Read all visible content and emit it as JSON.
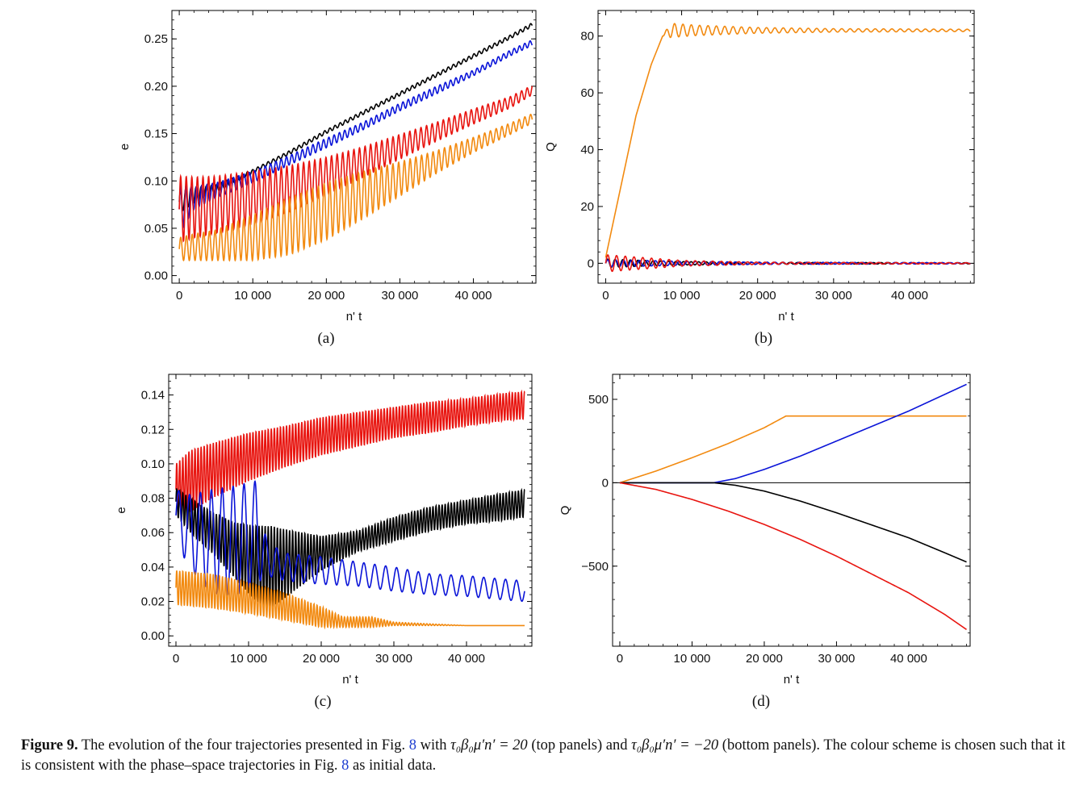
{
  "figure": {
    "caption_head": "Figure 9.",
    "caption_part1": "The evolution of the four trajectories presented in Fig.",
    "ref1": "8",
    "caption_part2": "with",
    "math1": "τ₀β₀μ′n′ = 20",
    "caption_part3": "(top panels) and",
    "math2": "τ₀β₀μ′n′ = −20",
    "caption_part4": "(bottom panels). The colour scheme is chosen such that it is consistent with the phase–space trajectories in Fig.",
    "ref2": "8",
    "caption_part5": "as initial data."
  },
  "colors": {
    "black": "#000000",
    "blue": "#0a14d8",
    "red": "#e8140f",
    "orange": "#f28a10"
  },
  "chart_data": [
    {
      "panel": "a",
      "sublabel": "(a)",
      "type": "line",
      "xlabel": "n' t",
      "ylabel": "e",
      "xlim": [
        -1000,
        48500
      ],
      "ylim": [
        -0.008,
        0.28
      ],
      "xticks": [
        0,
        10000,
        20000,
        30000,
        40000
      ],
      "xtick_labels": [
        "0",
        "10 000",
        "20 000",
        "30 000",
        "40 000"
      ],
      "yticks": [
        0,
        0.05,
        0.1,
        0.15,
        0.2,
        0.25
      ],
      "ytick_labels": [
        "0.00",
        "0.05",
        "0.10",
        "0.15",
        "0.20",
        "0.25"
      ],
      "series": [
        {
          "color": "black",
          "x": [
            0,
            2000,
            5000,
            10000,
            15000,
            20000,
            25000,
            30000,
            35000,
            40000,
            45000,
            48000
          ],
          "y": [
            0.078,
            0.085,
            0.092,
            0.11,
            0.13,
            0.152,
            0.172,
            0.192,
            0.212,
            0.232,
            0.252,
            0.265
          ],
          "osc": [
            0.012,
            0.008,
            0.004,
            0.002,
            0.002,
            0.002,
            0.002,
            0.002,
            0.002,
            0.002,
            0.002,
            0.002
          ],
          "period": 700
        },
        {
          "color": "blue",
          "x": [
            0,
            2000,
            5000,
            10000,
            15000,
            20000,
            25000,
            30000,
            35000,
            40000,
            45000,
            48000
          ],
          "y": [
            0.07,
            0.082,
            0.09,
            0.104,
            0.122,
            0.14,
            0.158,
            0.178,
            0.196,
            0.214,
            0.235,
            0.246
          ],
          "osc": [
            0.025,
            0.012,
            0.008,
            0.006,
            0.005,
            0.005,
            0.004,
            0.004,
            0.004,
            0.003,
            0.003,
            0.003
          ],
          "period": 720
        },
        {
          "color": "red",
          "x": [
            0,
            2000,
            5000,
            10000,
            15000,
            20000,
            25000,
            30000,
            35000,
            40000,
            45000,
            48000
          ],
          "y": [
            0.07,
            0.072,
            0.075,
            0.082,
            0.092,
            0.105,
            0.12,
            0.136,
            0.152,
            0.168,
            0.183,
            0.196
          ],
          "osc": [
            0.035,
            0.032,
            0.03,
            0.028,
            0.024,
            0.02,
            0.016,
            0.013,
            0.01,
            0.008,
            0.006,
            0.005
          ],
          "period": 760
        },
        {
          "color": "orange",
          "x": [
            0,
            2000,
            5000,
            10000,
            15000,
            20000,
            25000,
            30000,
            35000,
            40000,
            45000,
            48000
          ],
          "y": [
            0.028,
            0.03,
            0.032,
            0.04,
            0.052,
            0.068,
            0.085,
            0.102,
            0.12,
            0.138,
            0.155,
            0.166
          ],
          "osc": [
            0.012,
            0.014,
            0.016,
            0.024,
            0.03,
            0.03,
            0.025,
            0.018,
            0.012,
            0.008,
            0.006,
            0.005
          ],
          "period": 780
        }
      ]
    },
    {
      "panel": "b",
      "sublabel": "(b)",
      "type": "line",
      "xlabel": "n' t",
      "ylabel": "Q",
      "xlim": [
        -1000,
        48500
      ],
      "ylim": [
        -7,
        89
      ],
      "xticks": [
        0,
        10000,
        20000,
        30000,
        40000
      ],
      "xtick_labels": [
        "0",
        "10 000",
        "20 000",
        "30 000",
        "40 000"
      ],
      "yticks": [
        0,
        20,
        40,
        60,
        80
      ],
      "ytick_labels": [
        "0",
        "20",
        "40",
        "60",
        "80"
      ],
      "series": [
        {
          "color": "orange",
          "x": [
            0,
            2000,
            4000,
            6000,
            7500,
            8500,
            12000,
            20000,
            30000,
            40000,
            48000
          ],
          "y": [
            2,
            27,
            52,
            70,
            80,
            82,
            82,
            82,
            82,
            82,
            82
          ],
          "osc": [
            0,
            0,
            0,
            0,
            0,
            2.5,
            1.8,
            1.0,
            0.6,
            0.5,
            0.4
          ],
          "period": 1100
        },
        {
          "color": "black",
          "x": [
            0,
            5000,
            10000,
            20000,
            48000
          ],
          "y": [
            0,
            0,
            0,
            0,
            0
          ],
          "osc": [
            1.5,
            1.0,
            0.6,
            0.3,
            0.2
          ],
          "period": 1000
        },
        {
          "color": "blue",
          "x": [
            0,
            5000,
            10000,
            20000,
            48000
          ],
          "y": [
            0,
            0,
            0,
            0,
            0
          ],
          "osc": [
            1.2,
            1.0,
            0.7,
            0.4,
            0.2
          ],
          "period": 1050
        },
        {
          "color": "red",
          "x": [
            0,
            5000,
            10000,
            20000,
            48000
          ],
          "y": [
            0,
            0,
            0,
            0,
            0
          ],
          "osc": [
            3.0,
            2.0,
            1.0,
            0.4,
            0.2
          ],
          "period": 1150
        }
      ]
    },
    {
      "panel": "c",
      "sublabel": "(c)",
      "type": "line",
      "xlabel": "n' t",
      "ylabel": "e",
      "xlim": [
        -1000,
        49000
      ],
      "ylim": [
        -0.006,
        0.152
      ],
      "xticks": [
        0,
        10000,
        20000,
        30000,
        40000
      ],
      "xtick_labels": [
        "0",
        "10 000",
        "20 000",
        "30 000",
        "40 000"
      ],
      "yticks": [
        0,
        0.02,
        0.04,
        0.06,
        0.08,
        0.1,
        0.12,
        0.14
      ],
      "ytick_labels": [
        "0.00",
        "0.02",
        "0.04",
        "0.06",
        "0.08",
        "0.10",
        "0.12",
        "0.14"
      ],
      "series": [
        {
          "color": "red",
          "x": [
            0,
            2000,
            5000,
            10000,
            15000,
            20000,
            25000,
            30000,
            35000,
            40000,
            45000,
            48000
          ],
          "y": [
            0.085,
            0.09,
            0.096,
            0.104,
            0.11,
            0.116,
            0.12,
            0.124,
            0.127,
            0.13,
            0.133,
            0.134
          ],
          "osc": [
            0.015,
            0.018,
            0.016,
            0.014,
            0.012,
            0.011,
            0.01,
            0.009,
            0.009,
            0.008,
            0.008,
            0.008
          ],
          "period": 420
        },
        {
          "color": "black",
          "x": [
            0,
            2000,
            5000,
            8000,
            11000,
            13000,
            15000,
            20000,
            25000,
            30000,
            35000,
            40000,
            45000,
            48000
          ],
          "y": [
            0.078,
            0.07,
            0.06,
            0.05,
            0.042,
            0.04,
            0.042,
            0.048,
            0.055,
            0.062,
            0.068,
            0.072,
            0.075,
            0.077
          ],
          "osc": [
            0.008,
            0.01,
            0.012,
            0.016,
            0.022,
            0.024,
            0.02,
            0.01,
            0.006,
            0.007,
            0.007,
            0.007,
            0.008,
            0.008
          ],
          "period": 420
        },
        {
          "color": "blue",
          "x": [
            0,
            2000,
            5000,
            8000,
            11000,
            12500,
            15000,
            20000,
            25000,
            30000,
            35000,
            40000,
            45000,
            48000
          ],
          "y": [
            0.07,
            0.06,
            0.055,
            0.055,
            0.06,
            0.045,
            0.04,
            0.038,
            0.036,
            0.033,
            0.03,
            0.029,
            0.027,
            0.026
          ],
          "osc": [
            0.015,
            0.022,
            0.03,
            0.032,
            0.03,
            0.01,
            0.008,
            0.008,
            0.007,
            0.007,
            0.006,
            0.006,
            0.006,
            0.006
          ],
          "period": 1500
        },
        {
          "color": "orange",
          "x": [
            0,
            5000,
            10000,
            15000,
            20000,
            23000,
            27000,
            30000,
            40000,
            48000
          ],
          "y": [
            0.028,
            0.026,
            0.022,
            0.017,
            0.011,
            0.008,
            0.008,
            0.007,
            0.006,
            0.006
          ],
          "osc": [
            0.01,
            0.01,
            0.009,
            0.008,
            0.006,
            0.003,
            0.003,
            0.001,
            0.0,
            0.0
          ],
          "period": 420
        }
      ]
    },
    {
      "panel": "d",
      "sublabel": "(d)",
      "type": "line",
      "xlabel": "n' t",
      "ylabel": "Q",
      "xlim": [
        -1000,
        48500
      ],
      "ylim": [
        -980,
        650
      ],
      "xticks": [
        0,
        10000,
        20000,
        30000,
        40000
      ],
      "xtick_labels": [
        "0",
        "10 000",
        "20 000",
        "30 000",
        "40 000"
      ],
      "yticks": [
        -500,
        0,
        500
      ],
      "ytick_labels": [
        "−500",
        "0",
        "500"
      ],
      "series": [
        {
          "color": "orange",
          "x": [
            0,
            5000,
            10000,
            15000,
            20000,
            23000,
            30000,
            40000,
            48000
          ],
          "y": [
            0,
            70,
            150,
            235,
            330,
            400,
            400,
            400,
            400
          ]
        },
        {
          "color": "blue",
          "x": [
            0,
            10000,
            13000,
            16000,
            20000,
            25000,
            30000,
            35000,
            40000,
            45000,
            48000
          ],
          "y": [
            0,
            0,
            0,
            25,
            80,
            160,
            250,
            340,
            430,
            530,
            590
          ]
        },
        {
          "color": "black",
          "x": [
            0,
            10000,
            13000,
            16000,
            20000,
            25000,
            30000,
            35000,
            40000,
            45000,
            48000
          ],
          "y": [
            0,
            0,
            0,
            -15,
            -50,
            -110,
            -180,
            -255,
            -330,
            -420,
            -475
          ]
        },
        {
          "color": "red",
          "x": [
            0,
            5000,
            10000,
            15000,
            20000,
            25000,
            30000,
            35000,
            40000,
            45000,
            48000
          ],
          "y": [
            0,
            -40,
            -100,
            -170,
            -250,
            -340,
            -440,
            -550,
            -660,
            -790,
            -880
          ]
        }
      ]
    }
  ]
}
